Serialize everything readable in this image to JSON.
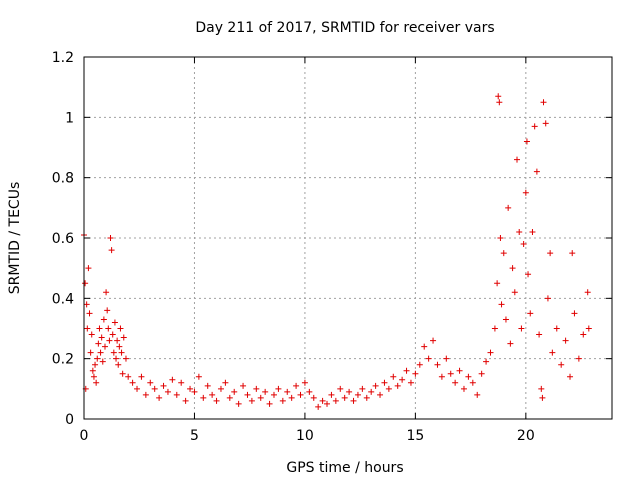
{
  "chart_data": {
    "type": "scatter",
    "title": "Day 211 of 2017, SRMTID for receiver vars",
    "xlabel": "GPS time / hours",
    "ylabel": "SRMTID / TECUs",
    "xlim": [
      0,
      23.9
    ],
    "ylim": [
      0,
      1.2
    ],
    "xticks": [
      0,
      5,
      10,
      15,
      20
    ],
    "xtick_labels": [
      "0",
      "5",
      "10",
      "15",
      "20"
    ],
    "yticks": [
      0,
      0.2,
      0.4,
      0.6,
      0.8,
      1.0,
      1.2
    ],
    "ytick_labels": [
      "0",
      "0.2",
      "0.4",
      "0.6",
      "0.8",
      "1",
      "1.2"
    ],
    "grid": true,
    "marker": "plus",
    "series": [
      {
        "name": "SRMTID",
        "color": "#e00000",
        "points": [
          [
            0.0,
            0.61
          ],
          [
            0.05,
            0.45
          ],
          [
            0.08,
            0.1
          ],
          [
            0.12,
            0.38
          ],
          [
            0.15,
            0.3
          ],
          [
            0.2,
            0.5
          ],
          [
            0.25,
            0.35
          ],
          [
            0.3,
            0.22
          ],
          [
            0.35,
            0.28
          ],
          [
            0.4,
            0.16
          ],
          [
            0.45,
            0.14
          ],
          [
            0.5,
            0.18
          ],
          [
            0.55,
            0.12
          ],
          [
            0.6,
            0.2
          ],
          [
            0.65,
            0.25
          ],
          [
            0.7,
            0.3
          ],
          [
            0.75,
            0.22
          ],
          [
            0.8,
            0.27
          ],
          [
            0.85,
            0.19
          ],
          [
            0.9,
            0.33
          ],
          [
            0.95,
            0.24
          ],
          [
            1.0,
            0.42
          ],
          [
            1.05,
            0.36
          ],
          [
            1.1,
            0.3
          ],
          [
            1.15,
            0.26
          ],
          [
            1.2,
            0.6
          ],
          [
            1.25,
            0.56
          ],
          [
            1.3,
            0.28
          ],
          [
            1.35,
            0.22
          ],
          [
            1.4,
            0.32
          ],
          [
            1.45,
            0.2
          ],
          [
            1.5,
            0.26
          ],
          [
            1.55,
            0.18
          ],
          [
            1.6,
            0.24
          ],
          [
            1.65,
            0.3
          ],
          [
            1.7,
            0.22
          ],
          [
            1.75,
            0.15
          ],
          [
            1.8,
            0.27
          ],
          [
            1.9,
            0.2
          ],
          [
            2.0,
            0.14
          ],
          [
            2.2,
            0.12
          ],
          [
            2.4,
            0.1
          ],
          [
            2.6,
            0.14
          ],
          [
            2.8,
            0.08
          ],
          [
            3.0,
            0.12
          ],
          [
            3.2,
            0.1
          ],
          [
            3.4,
            0.07
          ],
          [
            3.6,
            0.11
          ],
          [
            3.8,
            0.09
          ],
          [
            4.0,
            0.13
          ],
          [
            4.2,
            0.08
          ],
          [
            4.4,
            0.12
          ],
          [
            4.6,
            0.06
          ],
          [
            4.8,
            0.1
          ],
          [
            5.0,
            0.09
          ],
          [
            5.2,
            0.14
          ],
          [
            5.4,
            0.07
          ],
          [
            5.6,
            0.11
          ],
          [
            5.8,
            0.08
          ],
          [
            6.0,
            0.06
          ],
          [
            6.2,
            0.1
          ],
          [
            6.4,
            0.12
          ],
          [
            6.6,
            0.07
          ],
          [
            6.8,
            0.09
          ],
          [
            7.0,
            0.05
          ],
          [
            7.2,
            0.11
          ],
          [
            7.4,
            0.08
          ],
          [
            7.6,
            0.06
          ],
          [
            7.8,
            0.1
          ],
          [
            8.0,
            0.07
          ],
          [
            8.2,
            0.09
          ],
          [
            8.4,
            0.05
          ],
          [
            8.6,
            0.08
          ],
          [
            8.8,
            0.1
          ],
          [
            9.0,
            0.06
          ],
          [
            9.2,
            0.09
          ],
          [
            9.4,
            0.07
          ],
          [
            9.6,
            0.11
          ],
          [
            9.8,
            0.08
          ],
          [
            10.0,
            0.12
          ],
          [
            10.2,
            0.09
          ],
          [
            10.4,
            0.07
          ],
          [
            10.6,
            0.04
          ],
          [
            10.8,
            0.06
          ],
          [
            11.0,
            0.05
          ],
          [
            11.2,
            0.08
          ],
          [
            11.4,
            0.06
          ],
          [
            11.6,
            0.1
          ],
          [
            11.8,
            0.07
          ],
          [
            12.0,
            0.09
          ],
          [
            12.2,
            0.06
          ],
          [
            12.4,
            0.08
          ],
          [
            12.6,
            0.1
          ],
          [
            12.8,
            0.07
          ],
          [
            13.0,
            0.09
          ],
          [
            13.2,
            0.11
          ],
          [
            13.4,
            0.08
          ],
          [
            13.6,
            0.12
          ],
          [
            13.8,
            0.1
          ],
          [
            14.0,
            0.14
          ],
          [
            14.2,
            0.11
          ],
          [
            14.4,
            0.13
          ],
          [
            14.6,
            0.16
          ],
          [
            14.8,
            0.12
          ],
          [
            15.0,
            0.15
          ],
          [
            15.2,
            0.18
          ],
          [
            15.4,
            0.24
          ],
          [
            15.6,
            0.2
          ],
          [
            15.8,
            0.26
          ],
          [
            16.0,
            0.18
          ],
          [
            16.2,
            0.14
          ],
          [
            16.4,
            0.2
          ],
          [
            16.6,
            0.15
          ],
          [
            16.8,
            0.12
          ],
          [
            17.0,
            0.16
          ],
          [
            17.2,
            0.1
          ],
          [
            17.4,
            0.14
          ],
          [
            17.6,
            0.12
          ],
          [
            17.8,
            0.08
          ],
          [
            18.0,
            0.15
          ],
          [
            18.2,
            0.19
          ],
          [
            18.4,
            0.22
          ],
          [
            18.6,
            0.3
          ],
          [
            18.7,
            0.45
          ],
          [
            18.75,
            1.07
          ],
          [
            18.8,
            1.05
          ],
          [
            18.85,
            0.6
          ],
          [
            18.9,
            0.38
          ],
          [
            19.0,
            0.55
          ],
          [
            19.1,
            0.33
          ],
          [
            19.2,
            0.7
          ],
          [
            19.3,
            0.25
          ],
          [
            19.4,
            0.5
          ],
          [
            19.5,
            0.42
          ],
          [
            19.6,
            0.86
          ],
          [
            19.7,
            0.62
          ],
          [
            19.8,
            0.3
          ],
          [
            19.9,
            0.58
          ],
          [
            20.0,
            0.75
          ],
          [
            20.05,
            0.92
          ],
          [
            20.1,
            0.48
          ],
          [
            20.2,
            0.35
          ],
          [
            20.3,
            0.62
          ],
          [
            20.4,
            0.97
          ],
          [
            20.5,
            0.82
          ],
          [
            20.6,
            0.28
          ],
          [
            20.7,
            0.1
          ],
          [
            20.75,
            0.07
          ],
          [
            20.8,
            1.05
          ],
          [
            20.9,
            0.98
          ],
          [
            21.0,
            0.4
          ],
          [
            21.1,
            0.55
          ],
          [
            21.2,
            0.22
          ],
          [
            21.4,
            0.3
          ],
          [
            21.6,
            0.18
          ],
          [
            21.8,
            0.26
          ],
          [
            22.0,
            0.14
          ],
          [
            22.1,
            0.55
          ],
          [
            22.2,
            0.35
          ],
          [
            22.4,
            0.2
          ],
          [
            22.6,
            0.28
          ],
          [
            22.8,
            0.42
          ],
          [
            22.85,
            0.3
          ]
        ]
      }
    ]
  }
}
